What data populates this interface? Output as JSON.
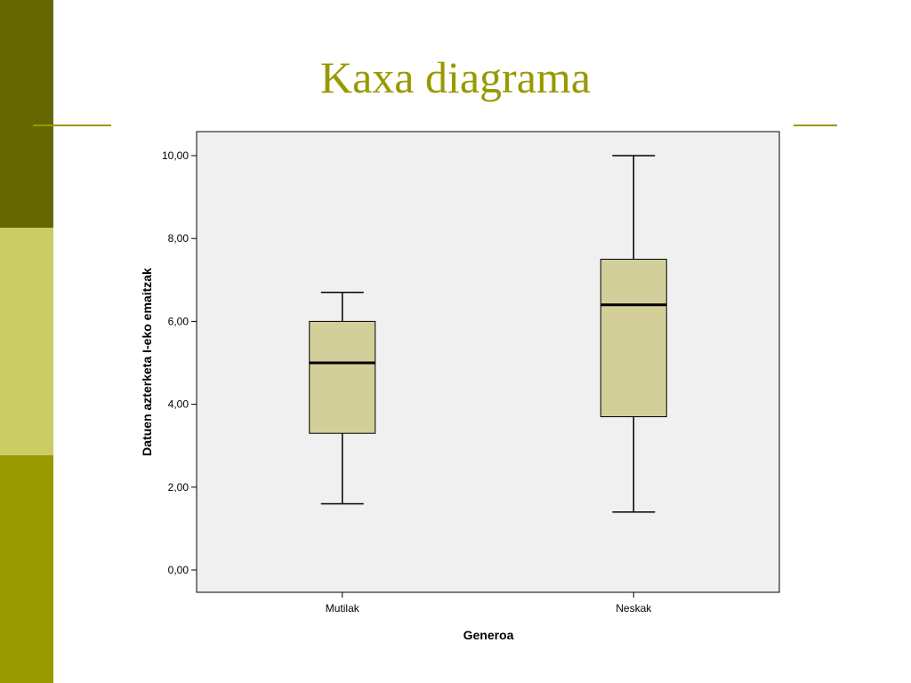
{
  "slide": {
    "title": "Kaxa diagrama",
    "colors": {
      "band_dark": "#666600",
      "band_light": "#cccc66",
      "band_mid": "#999900",
      "title": "#999900"
    }
  },
  "chart_data": {
    "type": "box",
    "title": "",
    "xlabel": "Generoa",
    "ylabel": "Datuen azterketa I-eko emaitzak",
    "ylim": [
      0,
      10
    ],
    "yticks": [
      "0,00",
      "2,00",
      "4,00",
      "6,00",
      "8,00",
      "10,00"
    ],
    "ytick_values": [
      0,
      2,
      4,
      6,
      8,
      10
    ],
    "categories": [
      "Mutilak",
      "Neskak"
    ],
    "boxes": [
      {
        "category": "Mutilak",
        "min": 1.6,
        "q1": 3.3,
        "median": 5.0,
        "q3": 6.0,
        "max": 6.7
      },
      {
        "category": "Neskak",
        "min": 1.4,
        "q1": 3.7,
        "median": 6.4,
        "q3": 7.5,
        "max": 10.0
      }
    ],
    "grid": false,
    "colors": {
      "plot_bg": "#f0f0f0",
      "box_fill": "#d3cf9a",
      "line": "#000000"
    }
  }
}
